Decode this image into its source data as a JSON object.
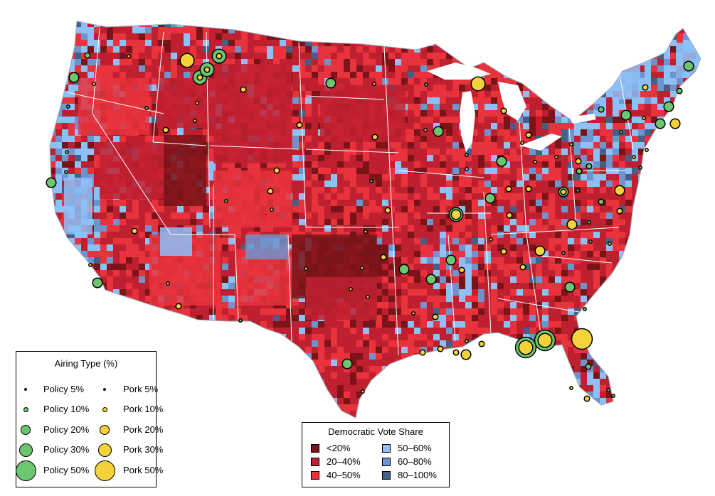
{
  "map": {
    "colors": {
      "d_lt20": "#7a1419",
      "d_20_40": "#bf2030",
      "d_40_50": "#e8323c",
      "d_50_60": "#8ec0f8",
      "d_60_80": "#6f93cc",
      "d_80_100": "#475e86",
      "policy": "#6cc56f",
      "pork": "#f4d23a",
      "state_line": "#ffffff",
      "water": "#ffffff"
    }
  },
  "airing_legend": {
    "title": "Airing Type (%)",
    "policy": [
      {
        "label": "Policy 5%",
        "share": 5
      },
      {
        "label": "Policy 10%",
        "share": 10
      },
      {
        "label": "Policy 20%",
        "share": 20
      },
      {
        "label": "Policy 30%",
        "share": 30
      },
      {
        "label": "Policy 50%",
        "share": 50
      }
    ],
    "pork": [
      {
        "label": "Pork 5%",
        "share": 5
      },
      {
        "label": "Pork 10%",
        "share": 10
      },
      {
        "label": "Pork 20%",
        "share": 20
      },
      {
        "label": "Pork 30%",
        "share": 30
      },
      {
        "label": "Pork 50%",
        "share": 50
      }
    ]
  },
  "vote_legend": {
    "title": "Democratic Vote Share",
    "bins": [
      {
        "label": "<20%",
        "color": "#7a1419"
      },
      {
        "label": "20–40%",
        "color": "#bf2030"
      },
      {
        "label": "40–50%",
        "color": "#e8323c"
      },
      {
        "label": "50–60%",
        "color": "#8ec0f8"
      },
      {
        "label": "60–80%",
        "color": "#6f93cc"
      },
      {
        "label": "80–100%",
        "color": "#475e86"
      }
    ]
  }
}
